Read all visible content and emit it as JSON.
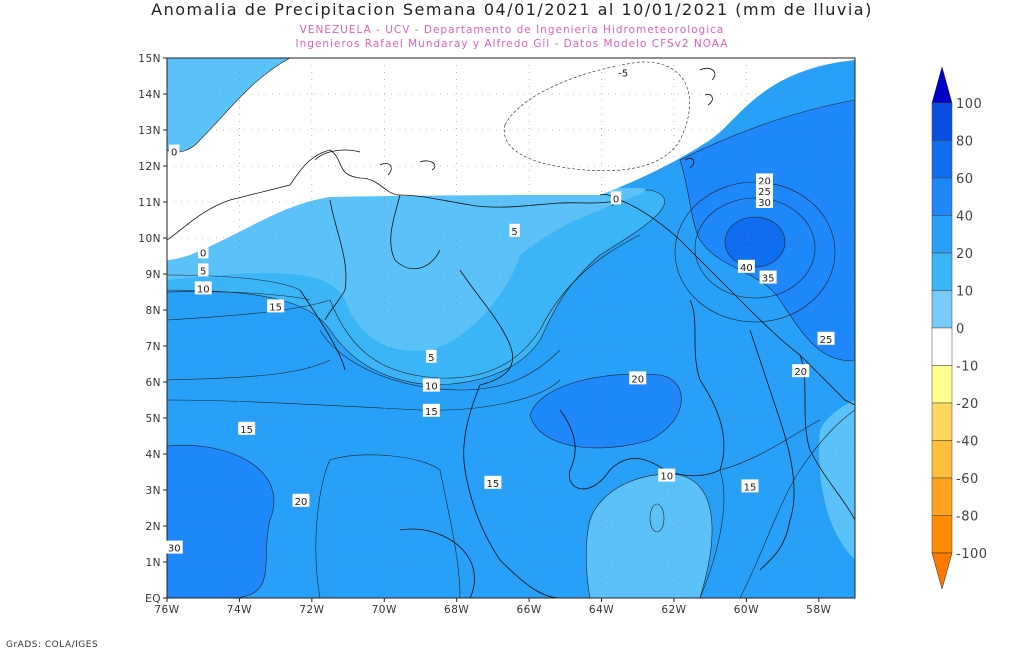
{
  "header": {
    "title": "Anomalia de Precipitacion Semana 04/01/2021 al 10/01/2021 (mm de lluvia)",
    "subtitle_1": "VENEZUELA - UCV - Departamento de Ingenieria Hidrometeorologica",
    "subtitle_2": "Ingenieros Rafael Mundaray y Alfredo Gil - Datos Modelo CFSv2 NOAA"
  },
  "credit": "GrADS: COLA/IGES",
  "map": {
    "lat_ticks": [
      "15N",
      "14N",
      "13N",
      "12N",
      "11N",
      "10N",
      "9N",
      "8N",
      "7N",
      "6N",
      "5N",
      "4N",
      "3N",
      "2N",
      "1N",
      "EQ"
    ],
    "lon_ticks": [
      "76W",
      "74W",
      "72W",
      "70W",
      "68W",
      "66W",
      "64W",
      "62W",
      "60W",
      "58W"
    ],
    "contour_labels": [
      {
        "text": "-5",
        "lon": -63.4,
        "lat": 14.6
      },
      {
        "text": "0",
        "lon": -75.8,
        "lat": 12.4
      },
      {
        "text": "0",
        "lon": -63.6,
        "lat": 11.1
      },
      {
        "text": "0",
        "lon": -75.0,
        "lat": 9.6
      },
      {
        "text": "5",
        "lon": -75.0,
        "lat": 9.1
      },
      {
        "text": "10",
        "lon": -75.0,
        "lat": 8.6
      },
      {
        "text": "15",
        "lon": -73.0,
        "lat": 8.1
      },
      {
        "text": "5",
        "lon": -66.4,
        "lat": 10.2
      },
      {
        "text": "5",
        "lon": -68.7,
        "lat": 6.7
      },
      {
        "text": "10",
        "lon": -68.7,
        "lat": 5.9
      },
      {
        "text": "15",
        "lon": -68.7,
        "lat": 5.2
      },
      {
        "text": "15",
        "lon": -73.8,
        "lat": 4.7
      },
      {
        "text": "20",
        "lon": -63.0,
        "lat": 6.1
      },
      {
        "text": "20",
        "lon": -59.5,
        "lat": 11.6
      },
      {
        "text": "25",
        "lon": -59.5,
        "lat": 11.3
      },
      {
        "text": "30",
        "lon": -59.5,
        "lat": 11.0
      },
      {
        "text": "40",
        "lon": -60.0,
        "lat": 9.2
      },
      {
        "text": "35",
        "lon": -59.4,
        "lat": 8.9
      },
      {
        "text": "25",
        "lon": -57.8,
        "lat": 7.2
      },
      {
        "text": "20",
        "lon": -58.5,
        "lat": 6.3
      },
      {
        "text": "15",
        "lon": -67.0,
        "lat": 3.2
      },
      {
        "text": "10",
        "lon": -62.2,
        "lat": 3.4
      },
      {
        "text": "15",
        "lon": -59.9,
        "lat": 3.1
      },
      {
        "text": "20",
        "lon": -72.3,
        "lat": 2.7
      },
      {
        "text": "30",
        "lon": -75.8,
        "lat": 1.4
      }
    ]
  },
  "colorbar": {
    "labels": [
      "100",
      "80",
      "60",
      "40",
      "20",
      "10",
      "0",
      "-10",
      "-20",
      "-40",
      "-60",
      "-80",
      "-100"
    ],
    "colors": [
      "#0000c8",
      "#0a4ee0",
      "#0f6ef0",
      "#1e87fa",
      "#28a0f8",
      "#3cb4f8",
      "#78cbf8",
      "#ffffff",
      "#ffff90",
      "#ffd860",
      "#ffbe3c",
      "#ffa21e",
      "#ff8c00",
      "#ff7a00"
    ]
  }
}
